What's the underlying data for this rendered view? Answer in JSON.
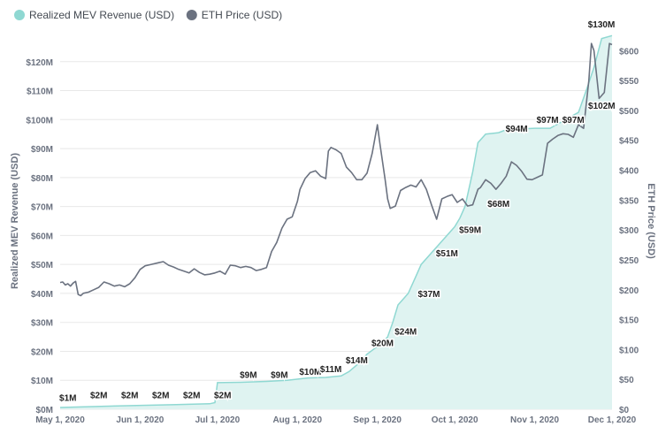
{
  "chart_data": {
    "type": "area+line",
    "legend": {
      "position": "top-left",
      "items": [
        {
          "name": "Realized MEV Revenue (USD)",
          "color": "#8fd8d2"
        },
        {
          "name": "ETH Price (USD)",
          "color": "#6b7280"
        }
      ]
    },
    "y_left": {
      "label": "Realized MEV Revenue (USD)",
      "min": 0,
      "max": 130,
      "ticks": [
        0,
        10,
        20,
        30,
        40,
        50,
        60,
        70,
        80,
        90,
        100,
        110,
        120
      ],
      "tick_labels": [
        "$0M",
        "$10M",
        "$20M",
        "$30M",
        "$40M",
        "$50M",
        "$60M",
        "$70M",
        "$80M",
        "$90M",
        "$100M",
        "$110M",
        "$120M"
      ]
    },
    "y_right": {
      "label": "ETH Price (USD)",
      "min": 0,
      "max": 630,
      "ticks": [
        0,
        50,
        100,
        150,
        200,
        250,
        300,
        350,
        400,
        450,
        500,
        550,
        600
      ],
      "tick_labels": [
        "$0",
        "$50",
        "$100",
        "$150",
        "$200",
        "$250",
        "$300",
        "$350",
        "$400",
        "$450",
        "$500",
        "$550",
        "$600"
      ]
    },
    "x_axis": {
      "start": "2020-05-01",
      "end": "2020-12-01",
      "ticks": [
        "2020-05-01",
        "2020-06-01",
        "2020-07-01",
        "2020-08-01",
        "2020-09-01",
        "2020-10-01",
        "2020-11-01",
        "2020-12-01"
      ],
      "tick_labels": [
        "May 1, 2020",
        "Jun 1, 2020",
        "Jul 1, 2020",
        "Aug 1, 2020",
        "Sep 1, 2020",
        "Oct 1, 2020",
        "Nov 1, 2020",
        "Dec 1, 2020"
      ]
    },
    "grid": "horizontal",
    "mev_series": [
      [
        "2020-05-01",
        0.6
      ],
      [
        "2020-05-12",
        0.9
      ],
      [
        "2020-05-25",
        1.2
      ],
      [
        "2020-06-15",
        1.6
      ],
      [
        "2020-06-28",
        1.9
      ],
      [
        "2020-06-30",
        2.3
      ],
      [
        "2020-07-01",
        9.2
      ],
      [
        "2020-07-10",
        9.3
      ],
      [
        "2020-07-20",
        9.6
      ],
      [
        "2020-07-28",
        10.0
      ],
      [
        "2020-08-05",
        10.8
      ],
      [
        "2020-08-12",
        11.0
      ],
      [
        "2020-08-18",
        11.5
      ],
      [
        "2020-08-21",
        13.0
      ],
      [
        "2020-08-25",
        16.0
      ],
      [
        "2020-08-28",
        19.0
      ],
      [
        "2020-08-31",
        21.0
      ],
      [
        "2020-09-03",
        23.0
      ],
      [
        "2020-09-05",
        25.0
      ],
      [
        "2020-09-07",
        30.0
      ],
      [
        "2020-09-09",
        36.0
      ],
      [
        "2020-09-11",
        38.0
      ],
      [
        "2020-09-13",
        40.0
      ],
      [
        "2020-09-16",
        46.0
      ],
      [
        "2020-09-18",
        50.0
      ],
      [
        "2020-09-22",
        54.0
      ],
      [
        "2020-09-26",
        58.0
      ],
      [
        "2020-09-29",
        61.0
      ],
      [
        "2020-10-01",
        63.0
      ],
      [
        "2020-10-03",
        66.0
      ],
      [
        "2020-10-05",
        70.0
      ],
      [
        "2020-10-08",
        82.0
      ],
      [
        "2020-10-10",
        92.0
      ],
      [
        "2020-10-13",
        95.0
      ],
      [
        "2020-10-18",
        95.5
      ],
      [
        "2020-10-21",
        96.5
      ],
      [
        "2020-11-01",
        97.0
      ],
      [
        "2020-11-07",
        97.0
      ],
      [
        "2020-11-11",
        99.0
      ],
      [
        "2020-11-15",
        101.0
      ],
      [
        "2020-11-18",
        102.5
      ],
      [
        "2020-11-21",
        110.0
      ],
      [
        "2020-11-24",
        118.0
      ],
      [
        "2020-11-27",
        128.0
      ],
      [
        "2020-12-01",
        129.0
      ]
    ],
    "eth_series": [
      [
        "2020-05-01",
        212
      ],
      [
        "2020-05-02",
        213
      ],
      [
        "2020-05-03",
        208
      ],
      [
        "2020-05-04",
        210
      ],
      [
        "2020-05-05",
        206
      ],
      [
        "2020-05-06",
        211
      ],
      [
        "2020-05-07",
        214
      ],
      [
        "2020-05-08",
        192
      ],
      [
        "2020-05-09",
        190
      ],
      [
        "2020-05-10",
        194
      ],
      [
        "2020-05-12",
        196
      ],
      [
        "2020-05-14",
        200
      ],
      [
        "2020-05-16",
        204
      ],
      [
        "2020-05-18",
        213
      ],
      [
        "2020-05-20",
        210
      ],
      [
        "2020-05-22",
        206
      ],
      [
        "2020-05-24",
        208
      ],
      [
        "2020-05-26",
        205
      ],
      [
        "2020-05-28",
        210
      ],
      [
        "2020-05-30",
        220
      ],
      [
        "2020-06-01",
        234
      ],
      [
        "2020-06-03",
        240
      ],
      [
        "2020-06-05",
        242
      ],
      [
        "2020-06-08",
        245
      ],
      [
        "2020-06-10",
        247
      ],
      [
        "2020-06-12",
        241
      ],
      [
        "2020-06-14",
        238
      ],
      [
        "2020-06-16",
        234
      ],
      [
        "2020-06-18",
        231
      ],
      [
        "2020-06-20",
        228
      ],
      [
        "2020-06-22",
        235
      ],
      [
        "2020-06-24",
        229
      ],
      [
        "2020-06-26",
        225
      ],
      [
        "2020-06-28",
        226
      ],
      [
        "2020-06-30",
        228
      ],
      [
        "2020-07-02",
        231
      ],
      [
        "2020-07-04",
        226
      ],
      [
        "2020-07-06",
        241
      ],
      [
        "2020-07-08",
        240
      ],
      [
        "2020-07-10",
        237
      ],
      [
        "2020-07-12",
        239
      ],
      [
        "2020-07-14",
        237
      ],
      [
        "2020-07-16",
        232
      ],
      [
        "2020-07-18",
        234
      ],
      [
        "2020-07-20",
        237
      ],
      [
        "2020-07-22",
        264
      ],
      [
        "2020-07-24",
        279
      ],
      [
        "2020-07-26",
        303
      ],
      [
        "2020-07-28",
        318
      ],
      [
        "2020-07-30",
        322
      ],
      [
        "2020-08-01",
        348
      ],
      [
        "2020-08-02",
        368
      ],
      [
        "2020-08-04",
        386
      ],
      [
        "2020-08-06",
        396
      ],
      [
        "2020-08-08",
        399
      ],
      [
        "2020-08-10",
        390
      ],
      [
        "2020-08-12",
        386
      ],
      [
        "2020-08-13",
        432
      ],
      [
        "2020-08-14",
        438
      ],
      [
        "2020-08-16",
        434
      ],
      [
        "2020-08-18",
        428
      ],
      [
        "2020-08-20",
        405
      ],
      [
        "2020-08-22",
        396
      ],
      [
        "2020-08-24",
        384
      ],
      [
        "2020-08-26",
        384
      ],
      [
        "2020-08-28",
        395
      ],
      [
        "2020-08-30",
        428
      ],
      [
        "2020-09-01",
        476
      ],
      [
        "2020-09-02",
        444
      ],
      [
        "2020-09-04",
        385
      ],
      [
        "2020-09-05",
        352
      ],
      [
        "2020-09-06",
        336
      ],
      [
        "2020-09-08",
        340
      ],
      [
        "2020-09-10",
        366
      ],
      [
        "2020-09-12",
        371
      ],
      [
        "2020-09-14",
        375
      ],
      [
        "2020-09-16",
        372
      ],
      [
        "2020-09-18",
        384
      ],
      [
        "2020-09-20",
        368
      ],
      [
        "2020-09-22",
        342
      ],
      [
        "2020-09-24",
        318
      ],
      [
        "2020-09-26",
        352
      ],
      [
        "2020-09-28",
        356
      ],
      [
        "2020-09-30",
        359
      ],
      [
        "2020-10-02",
        346
      ],
      [
        "2020-10-04",
        352
      ],
      [
        "2020-10-06",
        340
      ],
      [
        "2020-10-08",
        342
      ],
      [
        "2020-10-10",
        368
      ],
      [
        "2020-10-11",
        371
      ],
      [
        "2020-10-13",
        384
      ],
      [
        "2020-10-15",
        378
      ],
      [
        "2020-10-17",
        368
      ],
      [
        "2020-10-19",
        378
      ],
      [
        "2020-10-21",
        390
      ],
      [
        "2020-10-23",
        414
      ],
      [
        "2020-10-25",
        408
      ],
      [
        "2020-10-27",
        398
      ],
      [
        "2020-10-29",
        385
      ],
      [
        "2020-10-31",
        384
      ],
      [
        "2020-11-02",
        388
      ],
      [
        "2020-11-04",
        392
      ],
      [
        "2020-11-06",
        445
      ],
      [
        "2020-11-08",
        452
      ],
      [
        "2020-11-10",
        458
      ],
      [
        "2020-11-12",
        461
      ],
      [
        "2020-11-14",
        460
      ],
      [
        "2020-11-16",
        455
      ],
      [
        "2020-11-18",
        476
      ],
      [
        "2020-11-20",
        470
      ],
      [
        "2020-11-22",
        550
      ],
      [
        "2020-11-23",
        612
      ],
      [
        "2020-11-24",
        600
      ],
      [
        "2020-11-26",
        520
      ],
      [
        "2020-11-28",
        530
      ],
      [
        "2020-11-30",
        612
      ],
      [
        "2020-12-01",
        610
      ]
    ],
    "annotations": [
      {
        "date": "2020-05-04",
        "value": 1,
        "text": "$1M"
      },
      {
        "date": "2020-05-16",
        "value": 2,
        "text": "$2M"
      },
      {
        "date": "2020-05-28",
        "value": 2,
        "text": "$2M"
      },
      {
        "date": "2020-06-09",
        "value": 2,
        "text": "$2M"
      },
      {
        "date": "2020-06-21",
        "value": 2,
        "text": "$2M"
      },
      {
        "date": "2020-07-03",
        "value": 2,
        "text": "$2M"
      },
      {
        "date": "2020-07-13",
        "value": 9,
        "text": "$9M"
      },
      {
        "date": "2020-07-25",
        "value": 9,
        "text": "$9M"
      },
      {
        "date": "2020-08-06",
        "value": 10,
        "text": "$10M"
      },
      {
        "date": "2020-08-14",
        "value": 11,
        "text": "$11M"
      },
      {
        "date": "2020-08-24",
        "value": 14,
        "text": "$14M"
      },
      {
        "date": "2020-09-03",
        "value": 20,
        "text": "$20M"
      },
      {
        "date": "2020-09-12",
        "value": 24,
        "text": "$24M"
      },
      {
        "date": "2020-09-21",
        "value": 37,
        "text": "$37M"
      },
      {
        "date": "2020-09-28",
        "value": 51,
        "text": "$51M"
      },
      {
        "date": "2020-10-07",
        "value": 59,
        "text": "$59M"
      },
      {
        "date": "2020-10-18",
        "value": 68,
        "text": "$68M"
      },
      {
        "date": "2020-10-25",
        "value": 94,
        "text": "$94M"
      },
      {
        "date": "2020-11-06",
        "value": 97,
        "text": "$97M"
      },
      {
        "date": "2020-11-16",
        "value": 97,
        "text": "$97M"
      },
      {
        "date": "2020-11-27",
        "value": 102,
        "text": "$102M"
      },
      {
        "date": "2020-12-07",
        "value": 130,
        "text": "$130M"
      }
    ]
  }
}
